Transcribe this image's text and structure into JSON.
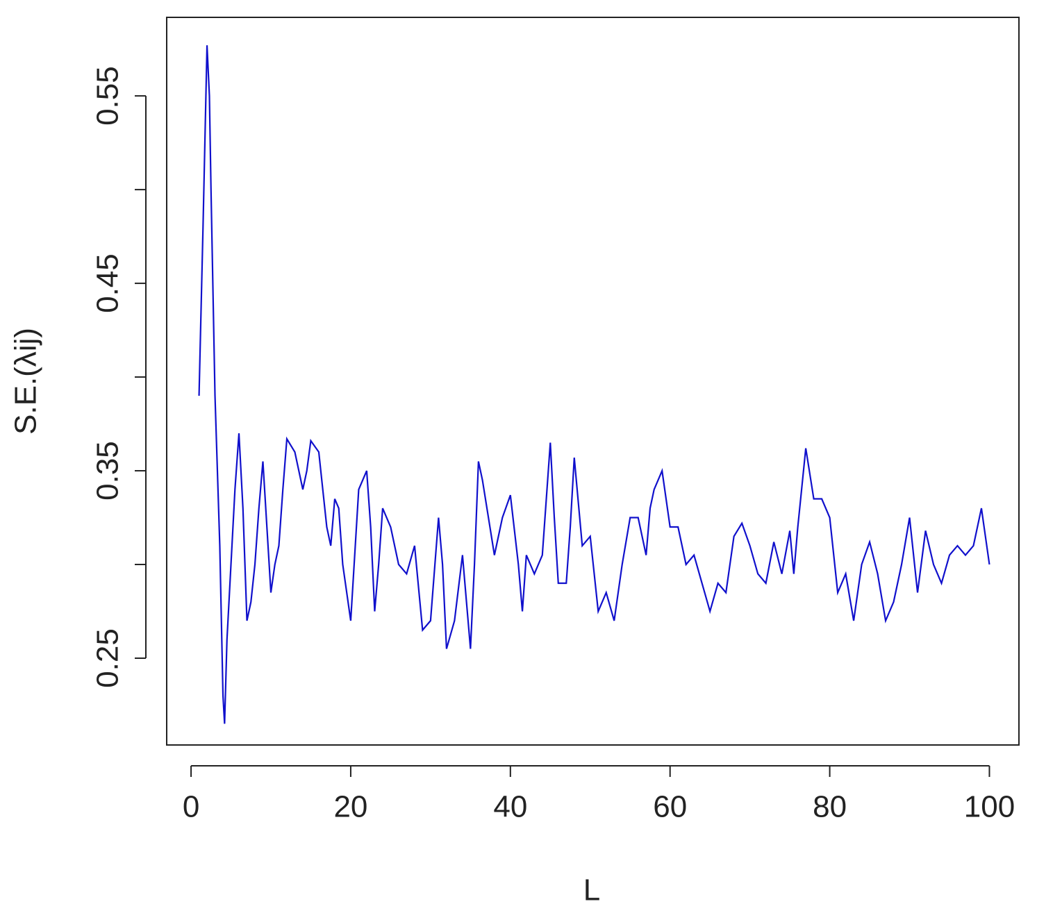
{
  "chart_data": {
    "type": "line",
    "xlabel": "L",
    "ylabel": "S.E.(λij)",
    "x": [
      1,
      1.5,
      2,
      2.3,
      2.5,
      3,
      3.3,
      3.6,
      4,
      4.2,
      4.5,
      5,
      5.5,
      6,
      6.5,
      7,
      7.5,
      8,
      8.5,
      9,
      9.5,
      10,
      10.5,
      11,
      11.5,
      12,
      13,
      14,
      14.5,
      15,
      16,
      17,
      17.5,
      18,
      18.5,
      19,
      20,
      21,
      22,
      22.5,
      23,
      23.5,
      24,
      25,
      26,
      27,
      28,
      29,
      30,
      31,
      31.5,
      32,
      33,
      34,
      34.5,
      35,
      35.5,
      36,
      36.5,
      38,
      39,
      40,
      41,
      41.5,
      42,
      43,
      44,
      45,
      45.5,
      46,
      47,
      47.5,
      48,
      49,
      50,
      51,
      52,
      53,
      54,
      55,
      56,
      57,
      57.5,
      58,
      59,
      60,
      61,
      62,
      63,
      64,
      65,
      66,
      67,
      68,
      69,
      70,
      71,
      72,
      73,
      74,
      75,
      75.5,
      76,
      77,
      78,
      79,
      80,
      81,
      82,
      83,
      84,
      85,
      86,
      87,
      88,
      89,
      90,
      91,
      92,
      93,
      94,
      95,
      96,
      97,
      98,
      99,
      100
    ],
    "series": [
      {
        "color": "#1010cc",
        "values": [
          0.39,
          0.48,
          0.577,
          0.55,
          0.5,
          0.39,
          0.35,
          0.31,
          0.23,
          0.215,
          0.26,
          0.3,
          0.34,
          0.37,
          0.33,
          0.27,
          0.28,
          0.3,
          0.33,
          0.355,
          0.32,
          0.285,
          0.3,
          0.31,
          0.34,
          0.367,
          0.36,
          0.34,
          0.35,
          0.366,
          0.36,
          0.32,
          0.31,
          0.335,
          0.33,
          0.3,
          0.27,
          0.34,
          0.35,
          0.32,
          0.275,
          0.3,
          0.33,
          0.32,
          0.3,
          0.295,
          0.31,
          0.265,
          0.27,
          0.325,
          0.3,
          0.255,
          0.27,
          0.305,
          0.28,
          0.255,
          0.3,
          0.355,
          0.345,
          0.305,
          0.325,
          0.337,
          0.3,
          0.275,
          0.305,
          0.295,
          0.305,
          0.365,
          0.325,
          0.29,
          0.29,
          0.32,
          0.357,
          0.31,
          0.315,
          0.275,
          0.285,
          0.27,
          0.3,
          0.325,
          0.325,
          0.305,
          0.33,
          0.34,
          0.35,
          0.32,
          0.32,
          0.3,
          0.305,
          0.29,
          0.275,
          0.29,
          0.285,
          0.315,
          0.322,
          0.31,
          0.295,
          0.29,
          0.312,
          0.295,
          0.318,
          0.295,
          0.32,
          0.362,
          0.335,
          0.335,
          0.325,
          0.285,
          0.295,
          0.27,
          0.3,
          0.312,
          0.295,
          0.27,
          0.28,
          0.3,
          0.325,
          0.285,
          0.318,
          0.3,
          0.29,
          0.305,
          0.31,
          0.305,
          0.31,
          0.33,
          0.3
        ]
      }
    ],
    "xlim": [
      -3.05,
      103.7
    ],
    "xticks": [
      0,
      20,
      40,
      60,
      80,
      100
    ],
    "ylim": [
      0.2037,
      0.5919
    ],
    "yticks": [
      0.25,
      0.35,
      0.45,
      0.55
    ],
    "yminor_ticks": [
      0.3,
      0.4,
      0.5
    ]
  }
}
